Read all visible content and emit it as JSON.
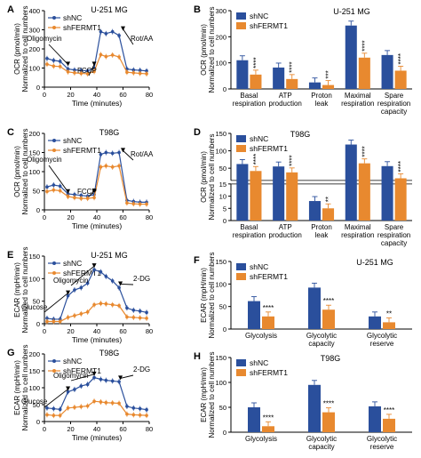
{
  "colors": {
    "shNC": "#2a4f9c",
    "shFERMT1": "#e8892f",
    "axis": "#000000"
  },
  "chart_data": [
    {
      "panel": "A",
      "type": "line",
      "title": "U-251 MG",
      "ylabel": [
        "OCR (pmol/min)",
        "Normalized to cell numbers"
      ],
      "xlabel": "Time (minutes)",
      "xlim": [
        0,
        80
      ],
      "ylim": [
        0,
        400
      ],
      "xticks": [
        0,
        20,
        40,
        60,
        80
      ],
      "yticks": [
        0,
        100,
        200,
        300,
        400
      ],
      "legend": [
        "shNC",
        "shFERMT1"
      ],
      "x": [
        2,
        7,
        12,
        18,
        23,
        28,
        33,
        38,
        43,
        47,
        52,
        57,
        63,
        68,
        73,
        78
      ],
      "series": [
        {
          "name": "shNC",
          "values": [
            150,
            140,
            135,
            95,
            90,
            88,
            85,
            100,
            290,
            280,
            290,
            270,
            95,
            90,
            88,
            85
          ]
        },
        {
          "name": "shFERMT1",
          "values": [
            120,
            110,
            108,
            80,
            75,
            72,
            70,
            82,
            170,
            160,
            168,
            158,
            78,
            75,
            72,
            70
          ]
        }
      ],
      "annotations": [
        "Oligomycin",
        "FCCP",
        "Rot/AA"
      ]
    },
    {
      "panel": "B",
      "type": "bar",
      "title": "U-251 MG",
      "ylabel": [
        "OCR (pmol/min)",
        "Normalized to cell numbers"
      ],
      "ylim": [
        0,
        300
      ],
      "yticks": [
        0,
        100,
        200,
        300
      ],
      "legend": [
        "shNC",
        "shFERMT1"
      ],
      "categories": [
        [
          "Basal",
          "respiration"
        ],
        [
          "ATP",
          "production"
        ],
        [
          "Proton",
          "leak"
        ],
        [
          "Maximal",
          "respiration"
        ],
        [
          "Spare",
          "respiration",
          "capacity"
        ]
      ],
      "series": [
        {
          "name": "shNC",
          "values": [
            110,
            82,
            25,
            243,
            130
          ]
        },
        {
          "name": "shFERMT1",
          "values": [
            55,
            38,
            15,
            120,
            70
          ]
        }
      ],
      "significance": [
        "****",
        "****",
        "***",
        "****",
        "****"
      ]
    },
    {
      "panel": "C",
      "type": "line",
      "title": "T98G",
      "ylabel": [
        "OCR (pmol/min)",
        "Normalized to cell numbers"
      ],
      "xlabel": "Time (minutes)",
      "xlim": [
        0,
        80
      ],
      "ylim": [
        0,
        200
      ],
      "xticks": [
        0,
        20,
        40,
        60,
        80
      ],
      "yticks": [
        0,
        50,
        100,
        150,
        200
      ],
      "legend": [
        "shNC",
        "shFERMT1"
      ],
      "x": [
        2,
        7,
        12,
        18,
        23,
        28,
        33,
        38,
        43,
        47,
        52,
        57,
        63,
        68,
        73,
        78
      ],
      "series": [
        {
          "name": "shNC",
          "values": [
            60,
            65,
            62,
            42,
            40,
            38,
            36,
            40,
            145,
            150,
            148,
            150,
            25,
            22,
            20,
            20
          ]
        },
        {
          "name": "shFERMT1",
          "values": [
            48,
            52,
            50,
            35,
            32,
            30,
            30,
            32,
            112,
            115,
            112,
            115,
            18,
            16,
            15,
            15
          ]
        }
      ],
      "annotations": [
        "Oligomycin",
        "FCCP",
        "Rot/AA"
      ]
    },
    {
      "panel": "D",
      "type": "bar",
      "title": "T98G",
      "ylabel": [
        "OCR (pmol/min)",
        "Normalized to cell numbers"
      ],
      "broken_axis": true,
      "yticks_top": [
        50,
        100,
        150
      ],
      "yticks_bottom": [
        0,
        5,
        10,
        15
      ],
      "legend": [
        "shNC",
        "shFERMT1"
      ],
      "categories": [
        [
          "Basal",
          "respiration"
        ],
        [
          "ATP",
          "production"
        ],
        [
          "Proton",
          "leak"
        ],
        [
          "Maximal",
          "respiration"
        ],
        [
          "Spare",
          "respiration",
          "capacity"
        ]
      ],
      "series": [
        {
          "name": "shNC",
          "values": [
            62,
            55,
            8,
            118,
            56
          ]
        },
        {
          "name": "shFERMT1",
          "values": [
            42,
            38,
            5,
            64,
            21
          ]
        }
      ],
      "significance": [
        "****",
        "****",
        "**",
        "****",
        "****"
      ]
    },
    {
      "panel": "E",
      "type": "line",
      "title": "U-251 MG",
      "ylabel": [
        "ECAR (mpH/min)",
        "Normalized to cell numbers"
      ],
      "xlabel": "Time (minutes)",
      "xlim": [
        0,
        80
      ],
      "ylim": [
        0,
        150
      ],
      "xticks": [
        0,
        20,
        40,
        60,
        80
      ],
      "yticks": [
        0,
        50,
        100,
        150
      ],
      "legend": [
        "shNC",
        "shFERMT1"
      ],
      "x": [
        2,
        7,
        12,
        18,
        23,
        28,
        33,
        38,
        43,
        47,
        52,
        57,
        63,
        68,
        73,
        78
      ],
      "series": [
        {
          "name": "shNC",
          "values": [
            12,
            10,
            10,
            62,
            75,
            80,
            90,
            120,
            115,
            105,
            95,
            80,
            35,
            30,
            28,
            25
          ]
        },
        {
          "name": "shFERMT1",
          "values": [
            5,
            5,
            5,
            14,
            18,
            22,
            26,
            42,
            45,
            44,
            42,
            40,
            15,
            14,
            13,
            12
          ]
        }
      ],
      "annotations": [
        "Glucose",
        "Oligomycin",
        "2-DG"
      ]
    },
    {
      "panel": "F",
      "type": "bar",
      "title": "U-251 MG",
      "ylabel": [
        "ECAR (mpH/min)",
        "Normalized to cell numbers"
      ],
      "ylim": [
        0,
        150
      ],
      "yticks": [
        0,
        50,
        100,
        150
      ],
      "legend": [
        "shNC",
        "shFERMT1"
      ],
      "categories": [
        [
          "Glycolysis"
        ],
        [
          "Glycolytic",
          "capacity"
        ],
        [
          "Glycolytic",
          "reserve"
        ]
      ],
      "series": [
        {
          "name": "shNC",
          "values": [
            62,
            92,
            28
          ]
        },
        {
          "name": "shFERMT1",
          "values": [
            28,
            43,
            15
          ]
        }
      ],
      "significance": [
        "****",
        "****",
        "**"
      ]
    },
    {
      "panel": "G",
      "type": "line",
      "title": "T98G",
      "ylabel": [
        "ECAR (mpH/min)",
        "Normalized to cell numbers"
      ],
      "xlabel": "Time (minutes)",
      "xlim": [
        0,
        80
      ],
      "ylim": [
        0,
        200
      ],
      "xticks": [
        0,
        20,
        40,
        60,
        80
      ],
      "yticks": [
        0,
        50,
        100,
        150,
        200
      ],
      "legend": [
        "shNC",
        "shFERMT1"
      ],
      "x": [
        2,
        7,
        12,
        18,
        23,
        28,
        33,
        38,
        43,
        47,
        52,
        57,
        63,
        68,
        73,
        78
      ],
      "series": [
        {
          "name": "shNC",
          "values": [
            40,
            38,
            36,
            88,
            95,
            105,
            110,
            130,
            125,
            122,
            120,
            118,
            45,
            40,
            38,
            35
          ]
        },
        {
          "name": "shFERMT1",
          "values": [
            20,
            18,
            18,
            40,
            42,
            44,
            46,
            60,
            58,
            56,
            55,
            54,
            22,
            20,
            19,
            18
          ]
        }
      ],
      "annotations": [
        "Glucose",
        "Oligomycin",
        "2-DG"
      ]
    },
    {
      "panel": "H",
      "type": "bar",
      "title": "T98G",
      "ylabel": [
        "ECAR (mpH/min)",
        "Normalized to cell numbers"
      ],
      "ylim": [
        0,
        150
      ],
      "yticks": [
        0,
        50,
        100,
        150
      ],
      "legend": [
        "shNC",
        "shFERMT1"
      ],
      "categories": [
        [
          "Glycolysis"
        ],
        [
          "Glycolytic",
          "capacity"
        ],
        [
          "Glycolytic",
          "reserve"
        ]
      ],
      "series": [
        {
          "name": "shNC",
          "values": [
            50,
            95,
            52
          ]
        },
        {
          "name": "shFERMT1",
          "values": [
            12,
            40,
            27
          ]
        }
      ],
      "significance": [
        "****",
        "****",
        "****"
      ]
    }
  ]
}
